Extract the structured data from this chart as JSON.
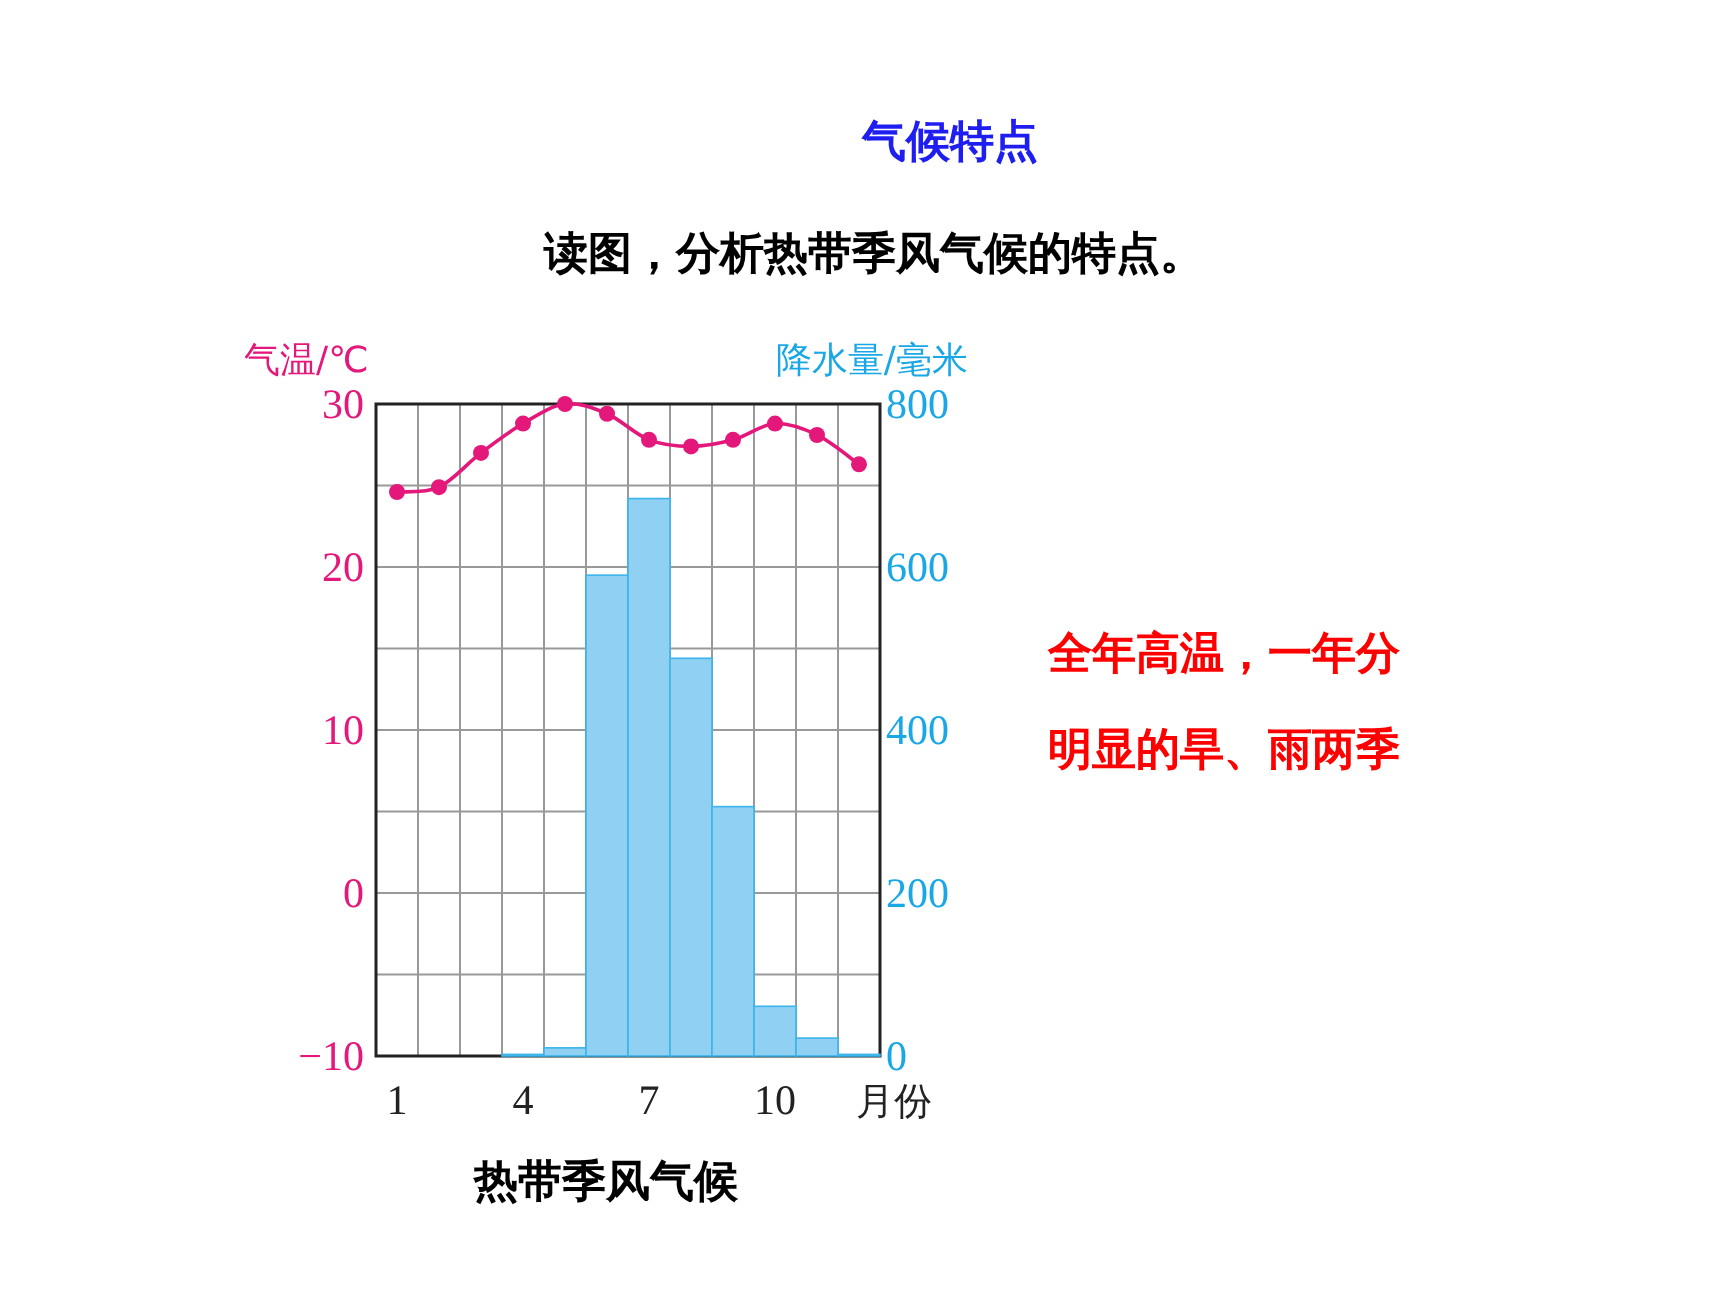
{
  "chart_data": {
    "type": "bar",
    "title": "气候特点",
    "subtitle": "读图，分析热带季风气候的特点。",
    "xlabel": "月份",
    "ylabel": "气温/℃",
    "y2label": "降水量/毫米",
    "annotations": [
      "全年高温，一年分明显的旱、雨两季",
      "热带季风气候"
    ],
    "categories": [
      "1",
      null,
      null,
      "4",
      null,
      null,
      "7",
      null,
      null,
      "10",
      null,
      null
    ],
    "series": [
      {
        "axis": "y2",
        "color": "#8fd0f3",
        "values": [
          0,
          0,
          0,
          2,
          10,
          590,
          684,
          488,
          306,
          61,
          22,
          2
        ]
      },
      {
        "type": "line",
        "axis": "y",
        "color": "#e4187a",
        "marker": "circle",
        "values": [
          24.6,
          24.9,
          27.0,
          28.8,
          30,
          29.4,
          27.8,
          27.4,
          27.8,
          28.8,
          28.1,
          26.3
        ]
      }
    ],
    "ylim": [
      -10,
      30
    ],
    "yticks": [
      {
        "value": -10,
        "label": "−10"
      },
      {
        "value": -5,
        "label": null
      },
      0,
      {
        "value": 5,
        "label": null
      },
      10,
      {
        "value": 15,
        "label": null
      },
      20,
      {
        "value": 25,
        "label": null
      },
      30
    ],
    "y2lim": [
      0,
      800
    ],
    "y2ticks": [
      0,
      200,
      400,
      600,
      800
    ],
    "grid": true
  }
}
